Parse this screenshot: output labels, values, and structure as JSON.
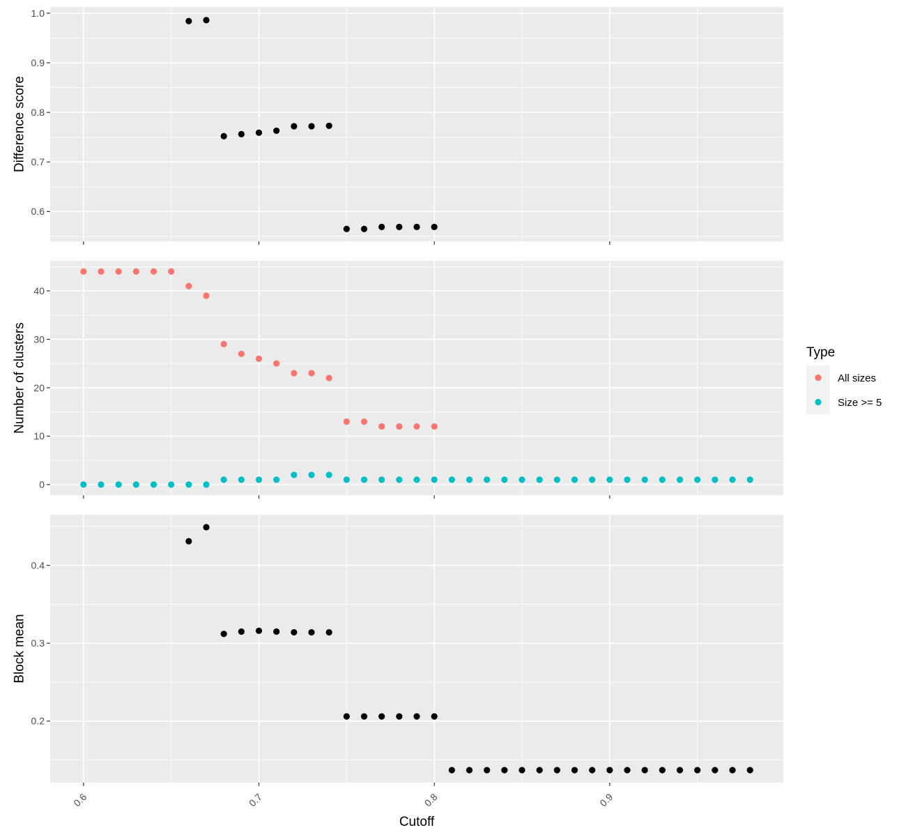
{
  "chart_data": [
    {
      "type": "scatter",
      "panel": "top",
      "xlabel": "Cutoff",
      "ylabel": "Difference score",
      "xlim": [
        0.581,
        0.999
      ],
      "ylim": [
        0.54,
        1.0125
      ],
      "x_ticks": [
        0.6,
        0.7,
        0.8,
        0.9
      ],
      "x_tick_labels": [
        "0.6",
        "0.7",
        "0.8",
        "0.9"
      ],
      "y_ticks": [
        0.6,
        0.7,
        0.8,
        0.9,
        1.0
      ],
      "y_tick_labels": [
        "0.6",
        "0.7",
        "0.8",
        "0.9",
        "1.0"
      ],
      "grid": true,
      "series": [
        {
          "color": "#000000",
          "x": [
            0.66,
            0.67,
            0.68,
            0.69,
            0.7,
            0.71,
            0.72,
            0.73,
            0.74,
            0.75,
            0.76,
            0.77,
            0.78,
            0.79,
            0.8
          ],
          "y": [
            0.984,
            0.986,
            0.752,
            0.756,
            0.759,
            0.763,
            0.772,
            0.772,
            0.773,
            0.565,
            0.565,
            0.569,
            0.569,
            0.569,
            0.569
          ]
        }
      ]
    },
    {
      "type": "scatter",
      "panel": "middle",
      "xlabel": "Cutoff",
      "ylabel": "Number of clusters",
      "xlim": [
        0.581,
        0.999
      ],
      "ylim": [
        -2.2,
        46.2
      ],
      "x_ticks": [
        0.6,
        0.7,
        0.8,
        0.9
      ],
      "x_tick_labels": [
        "0.6",
        "0.7",
        "0.8",
        "0.9"
      ],
      "y_ticks": [
        0,
        10,
        20,
        30,
        40
      ],
      "y_tick_labels": [
        "0",
        "10",
        "20",
        "30",
        "40"
      ],
      "grid": true,
      "legend_position": "right",
      "series": [
        {
          "name": "All sizes",
          "color": "#F8766D",
          "x": [
            0.6,
            0.61,
            0.62,
            0.63,
            0.64,
            0.65,
            0.66,
            0.67,
            0.68,
            0.69,
            0.7,
            0.71,
            0.72,
            0.73,
            0.74,
            0.75,
            0.76,
            0.77,
            0.78,
            0.79,
            0.8
          ],
          "y": [
            44,
            44,
            44,
            44,
            44,
            44,
            41,
            39,
            29,
            27,
            26,
            25,
            23,
            23,
            22,
            13,
            13,
            12,
            12,
            12,
            12
          ]
        },
        {
          "name": "Size >= 5",
          "color": "#00BFC4",
          "x": [
            0.6,
            0.61,
            0.62,
            0.63,
            0.64,
            0.65,
            0.66,
            0.67,
            0.68,
            0.69,
            0.7,
            0.71,
            0.72,
            0.73,
            0.74,
            0.75,
            0.76,
            0.77,
            0.78,
            0.79,
            0.8,
            0.81,
            0.82,
            0.83,
            0.84,
            0.85,
            0.86,
            0.87,
            0.88,
            0.89,
            0.9,
            0.91,
            0.92,
            0.93,
            0.94,
            0.95,
            0.96,
            0.97,
            0.98
          ],
          "y": [
            0,
            0,
            0,
            0,
            0,
            0,
            0,
            0,
            1,
            1,
            1,
            1,
            2,
            2,
            2,
            1,
            1,
            1,
            1,
            1,
            1,
            1,
            1,
            1,
            1,
            1,
            1,
            1,
            1,
            1,
            1,
            1,
            1,
            1,
            1,
            1,
            1,
            1,
            1
          ]
        }
      ]
    },
    {
      "type": "scatter",
      "panel": "bottom",
      "xlabel": "Cutoff",
      "ylabel": "Block mean",
      "xlim": [
        0.581,
        0.999
      ],
      "ylim": [
        0.121,
        0.465
      ],
      "x_ticks": [
        0.6,
        0.7,
        0.8,
        0.9
      ],
      "x_tick_labels": [
        "0.6",
        "0.7",
        "0.8",
        "0.9"
      ],
      "y_ticks": [
        0.2,
        0.3,
        0.4
      ],
      "y_tick_labels": [
        "0.2",
        "0.3",
        "0.4"
      ],
      "grid": true,
      "series": [
        {
          "color": "#000000",
          "x": [
            0.66,
            0.67,
            0.68,
            0.69,
            0.7,
            0.71,
            0.72,
            0.73,
            0.74,
            0.75,
            0.76,
            0.77,
            0.78,
            0.79,
            0.8,
            0.81,
            0.82,
            0.83,
            0.84,
            0.85,
            0.86,
            0.87,
            0.88,
            0.89,
            0.9,
            0.91,
            0.92,
            0.93,
            0.94,
            0.95,
            0.96,
            0.97,
            0.98
          ],
          "y": [
            0.431,
            0.449,
            0.312,
            0.315,
            0.316,
            0.315,
            0.314,
            0.314,
            0.314,
            0.206,
            0.206,
            0.206,
            0.206,
            0.206,
            0.206,
            0.137,
            0.137,
            0.137,
            0.137,
            0.137,
            0.137,
            0.137,
            0.137,
            0.137,
            0.137,
            0.137,
            0.137,
            0.137,
            0.137,
            0.137,
            0.137,
            0.137,
            0.137
          ]
        }
      ]
    }
  ],
  "legend": {
    "title": "Type",
    "items": [
      {
        "label": "All sizes",
        "color": "#F8766D"
      },
      {
        "label": "Size >= 5",
        "color": "#00BFC4"
      }
    ]
  }
}
